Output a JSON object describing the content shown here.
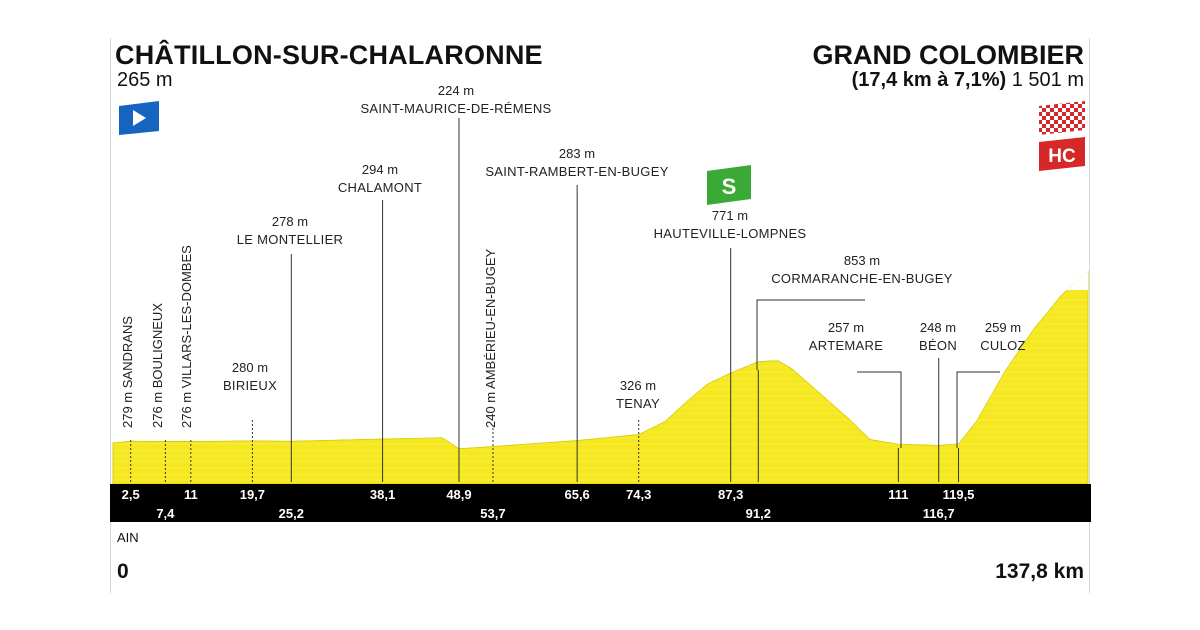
{
  "header": {
    "start_name": "CHÂTILLON-SUR-CHALARONNE",
    "start_elevation": "265 m",
    "finish_name": "GRAND COLOMBIER",
    "finish_climb": "(17,4 km à 7,1%)",
    "finish_elevation": "1 501 m"
  },
  "footer": {
    "region": "AIN",
    "km_start": "0",
    "km_end": "137,8 km"
  },
  "badges": {
    "sprint_label": "S",
    "hc_label": "HC"
  },
  "colors": {
    "profile_fill": "#f5e81f",
    "km_band": "#000000",
    "start_flag": "#1565c0",
    "sprint_badge": "#3aa935",
    "hc_badge": "#d62828"
  },
  "chart_data": {
    "type": "area",
    "xlabel": "",
    "ylabel": "",
    "xlim": [
      0,
      137.8
    ],
    "profile": [
      [
        0,
        265
      ],
      [
        2.5,
        279
      ],
      [
        7.4,
        276
      ],
      [
        11,
        276
      ],
      [
        19.7,
        280
      ],
      [
        25.2,
        278
      ],
      [
        38.1,
        294
      ],
      [
        44,
        300
      ],
      [
        46.5,
        305
      ],
      [
        48.9,
        224
      ],
      [
        53.7,
        240
      ],
      [
        65.6,
        283
      ],
      [
        74.3,
        326
      ],
      [
        78,
        420
      ],
      [
        81,
        560
      ],
      [
        84,
        690
      ],
      [
        87.3,
        771
      ],
      [
        91.2,
        853
      ],
      [
        94,
        860
      ],
      [
        96,
        800
      ],
      [
        100,
        620
      ],
      [
        104,
        440
      ],
      [
        107,
        290
      ],
      [
        111,
        257
      ],
      [
        116.7,
        248
      ],
      [
        119.5,
        259
      ],
      [
        122,
        420
      ],
      [
        126,
        780
      ],
      [
        130,
        1080
      ],
      [
        134,
        1330
      ],
      [
        137.8,
        1501
      ]
    ],
    "markers": [
      {
        "km": 2.5,
        "km_label": "2,5",
        "elevation": "279 m",
        "name": "SANDRANS",
        "label_style": "vertical",
        "km_row": "upper"
      },
      {
        "km": 7.4,
        "km_label": "7,4",
        "elevation": "276 m",
        "name": "BOULIGNEUX",
        "label_style": "vertical",
        "km_row": "lower"
      },
      {
        "km": 11,
        "km_label": "11",
        "elevation": "276 m",
        "name": "VILLARS-LES-DOMBES",
        "label_style": "vertical",
        "km_row": "upper"
      },
      {
        "km": 19.7,
        "km_label": "19,7",
        "elevation": "280 m",
        "name": "BIRIEUX",
        "label_style": "horizontal",
        "km_row": "upper"
      },
      {
        "km": 25.2,
        "km_label": "25,2",
        "elevation": "278 m",
        "name": "LE MONTELLIER",
        "label_style": "horizontal",
        "km_row": "lower"
      },
      {
        "km": 38.1,
        "km_label": "38,1",
        "elevation": "294 m",
        "name": "CHALAMONT",
        "label_style": "horizontal",
        "km_row": "upper"
      },
      {
        "km": 48.9,
        "km_label": "48,9",
        "elevation": "224 m",
        "name": "SAINT-MAURICE-DE-RÉMENS",
        "label_style": "horizontal",
        "km_row": "upper"
      },
      {
        "km": 53.7,
        "km_label": "53,7",
        "elevation": "240 m",
        "name": "AMBÉRIEU-EN-BUGEY",
        "label_style": "vertical",
        "km_row": "lower"
      },
      {
        "km": 65.6,
        "km_label": "65,6",
        "elevation": "283 m",
        "name": "SAINT-RAMBERT-EN-BUGEY",
        "label_style": "horizontal",
        "km_row": "upper"
      },
      {
        "km": 74.3,
        "km_label": "74,3",
        "elevation": "326 m",
        "name": "TENAY",
        "label_style": "horizontal",
        "km_row": "upper"
      },
      {
        "km": 87.3,
        "km_label": "87,3",
        "elevation": "771 m",
        "name": "HAUTEVILLE-LOMPNES",
        "label_style": "horizontal",
        "km_row": "upper"
      },
      {
        "km": 91.2,
        "km_label": "91,2",
        "elevation": "853 m",
        "name": "CORMARANCHE-EN-BUGEY",
        "label_style": "horizontal",
        "km_row": "lower"
      },
      {
        "km": 111,
        "km_label": "111",
        "elevation": "257 m",
        "name": "ARTEMARE",
        "label_style": "horizontal",
        "km_row": "upper"
      },
      {
        "km": 116.7,
        "km_label": "116,7",
        "elevation": "248 m",
        "name": "BÉON",
        "label_style": "horizontal",
        "km_row": "lower"
      },
      {
        "km": 119.5,
        "km_label": "119,5",
        "elevation": "259 m",
        "name": "CULOZ",
        "label_style": "horizontal",
        "km_row": "upper"
      }
    ]
  }
}
